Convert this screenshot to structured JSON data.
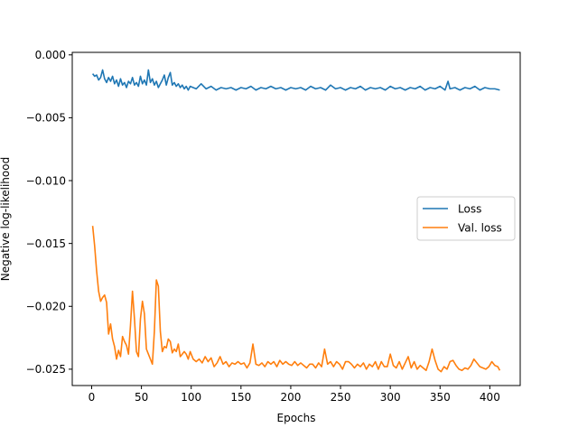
{
  "chart_data": {
    "type": "line",
    "title": "",
    "xlabel": "Epochs",
    "ylabel": "Negative log-likelihood",
    "xlim": [
      -19.5,
      430.5
    ],
    "ylim": [
      -0.0263,
      0.0002
    ],
    "xticks": [
      0,
      50,
      100,
      150,
      200,
      250,
      300,
      350,
      400
    ],
    "xtick_labels": [
      "0",
      "50",
      "100",
      "150",
      "200",
      "250",
      "300",
      "350",
      "400"
    ],
    "yticks": [
      0.0,
      -0.005,
      -0.01,
      -0.015,
      -0.02,
      -0.025
    ],
    "ytick_labels": [
      "0.000",
      "−0.005",
      "−0.010",
      "−0.015",
      "−0.020",
      "−0.025"
    ],
    "grid": false,
    "legend_position": "center-right",
    "series": [
      {
        "name": "Loss",
        "color": "#1f77b4",
        "x": [
          1,
          3,
          5,
          7,
          9,
          11,
          13,
          15,
          17,
          19,
          21,
          23,
          25,
          27,
          29,
          31,
          33,
          35,
          37,
          39,
          41,
          43,
          45,
          47,
          49,
          51,
          53,
          55,
          57,
          59,
          61,
          63,
          65,
          67,
          69,
          71,
          73,
          75,
          77,
          79,
          81,
          83,
          85,
          87,
          89,
          91,
          93,
          95,
          97,
          99,
          105,
          110,
          115,
          120,
          125,
          130,
          135,
          140,
          145,
          150,
          155,
          160,
          165,
          170,
          175,
          180,
          185,
          190,
          195,
          200,
          205,
          210,
          215,
          220,
          225,
          230,
          235,
          240,
          245,
          250,
          255,
          260,
          265,
          270,
          275,
          280,
          285,
          290,
          295,
          300,
          305,
          310,
          315,
          320,
          325,
          330,
          335,
          340,
          345,
          350,
          355,
          358,
          360,
          365,
          370,
          375,
          380,
          385,
          390,
          395,
          400,
          405,
          410
        ],
        "values": [
          -0.0015,
          -0.0017,
          -0.0016,
          -0.002,
          -0.0018,
          -0.0012,
          -0.0019,
          -0.0022,
          -0.0018,
          -0.0021,
          -0.0017,
          -0.0023,
          -0.002,
          -0.0025,
          -0.0019,
          -0.0024,
          -0.0022,
          -0.0026,
          -0.0021,
          -0.0023,
          -0.0018,
          -0.0024,
          -0.0022,
          -0.0025,
          -0.0017,
          -0.0023,
          -0.002,
          -0.0024,
          -0.0012,
          -0.0022,
          -0.0019,
          -0.0024,
          -0.0021,
          -0.0026,
          -0.0023,
          -0.002,
          -0.0016,
          -0.0024,
          -0.0018,
          -0.0014,
          -0.0024,
          -0.0022,
          -0.0025,
          -0.0023,
          -0.0026,
          -0.0024,
          -0.0027,
          -0.0025,
          -0.0028,
          -0.0025,
          -0.0027,
          -0.0023,
          -0.0027,
          -0.0025,
          -0.0028,
          -0.0026,
          -0.0027,
          -0.0026,
          -0.0028,
          -0.0026,
          -0.0027,
          -0.0025,
          -0.0028,
          -0.0026,
          -0.0027,
          -0.0025,
          -0.0027,
          -0.0026,
          -0.0028,
          -0.0026,
          -0.0027,
          -0.0026,
          -0.0028,
          -0.0025,
          -0.0027,
          -0.0026,
          -0.0028,
          -0.0024,
          -0.0027,
          -0.0026,
          -0.0028,
          -0.0026,
          -0.0027,
          -0.0025,
          -0.0028,
          -0.0026,
          -0.0027,
          -0.0026,
          -0.0028,
          -0.0025,
          -0.0027,
          -0.0026,
          -0.0028,
          -0.0026,
          -0.0027,
          -0.0025,
          -0.0028,
          -0.0026,
          -0.0027,
          -0.0025,
          -0.0028,
          -0.0021,
          -0.0027,
          -0.0026,
          -0.0028,
          -0.0026,
          -0.0027,
          -0.0025,
          -0.0028,
          -0.0026,
          -0.0027,
          -0.0027,
          -0.0028
        ]
      },
      {
        "name": "Val. loss",
        "color": "#ff7f0e",
        "x": [
          1,
          3,
          5,
          7,
          9,
          11,
          13,
          15,
          17,
          19,
          21,
          23,
          25,
          27,
          29,
          31,
          33,
          35,
          37,
          39,
          41,
          43,
          45,
          47,
          49,
          51,
          53,
          55,
          57,
          59,
          61,
          63,
          65,
          67,
          69,
          71,
          73,
          75,
          77,
          79,
          81,
          83,
          85,
          87,
          89,
          91,
          93,
          95,
          97,
          99,
          102,
          105,
          108,
          111,
          114,
          117,
          120,
          123,
          126,
          129,
          132,
          135,
          138,
          141,
          144,
          147,
          150,
          153,
          156,
          159,
          162,
          165,
          168,
          171,
          174,
          177,
          180,
          183,
          186,
          189,
          192,
          195,
          198,
          201,
          204,
          207,
          210,
          213,
          216,
          219,
          222,
          225,
          228,
          231,
          234,
          237,
          240,
          243,
          246,
          249,
          252,
          255,
          258,
          261,
          264,
          267,
          270,
          273,
          276,
          279,
          282,
          285,
          288,
          291,
          294,
          297,
          300,
          303,
          306,
          309,
          312,
          315,
          318,
          321,
          324,
          327,
          330,
          333,
          336,
          339,
          342,
          345,
          348,
          351,
          354,
          357,
          360,
          363,
          366,
          369,
          372,
          375,
          378,
          381,
          384,
          387,
          390,
          393,
          396,
          399,
          402,
          405,
          408,
          410
        ],
        "values": [
          -0.0136,
          -0.0152,
          -0.0172,
          -0.0188,
          -0.0196,
          -0.0193,
          -0.0191,
          -0.0197,
          -0.0222,
          -0.0214,
          -0.0226,
          -0.0232,
          -0.0242,
          -0.0235,
          -0.024,
          -0.0224,
          -0.0228,
          -0.0231,
          -0.0238,
          -0.0215,
          -0.0188,
          -0.021,
          -0.0236,
          -0.024,
          -0.021,
          -0.0196,
          -0.0206,
          -0.0234,
          -0.0238,
          -0.0242,
          -0.0246,
          -0.022,
          -0.0179,
          -0.0184,
          -0.022,
          -0.0236,
          -0.0232,
          -0.0233,
          -0.0226,
          -0.0228,
          -0.0237,
          -0.0234,
          -0.0236,
          -0.023,
          -0.024,
          -0.0238,
          -0.0236,
          -0.0238,
          -0.0242,
          -0.0236,
          -0.0242,
          -0.0244,
          -0.0242,
          -0.0245,
          -0.024,
          -0.0244,
          -0.0241,
          -0.0248,
          -0.0245,
          -0.024,
          -0.0246,
          -0.0244,
          -0.0248,
          -0.0245,
          -0.0246,
          -0.0244,
          -0.0246,
          -0.0245,
          -0.0249,
          -0.0245,
          -0.023,
          -0.0246,
          -0.0247,
          -0.0245,
          -0.0248,
          -0.0244,
          -0.0246,
          -0.0244,
          -0.0248,
          -0.0243,
          -0.0246,
          -0.0244,
          -0.0246,
          -0.0247,
          -0.0244,
          -0.0247,
          -0.0245,
          -0.0247,
          -0.0249,
          -0.0246,
          -0.0246,
          -0.0249,
          -0.0245,
          -0.0248,
          -0.0234,
          -0.0246,
          -0.0244,
          -0.0248,
          -0.0244,
          -0.0246,
          -0.025,
          -0.0244,
          -0.0244,
          -0.0246,
          -0.0249,
          -0.0246,
          -0.0248,
          -0.0245,
          -0.025,
          -0.0246,
          -0.0248,
          -0.0244,
          -0.025,
          -0.0244,
          -0.0248,
          -0.0248,
          -0.0238,
          -0.0247,
          -0.0249,
          -0.0244,
          -0.025,
          -0.0245,
          -0.024,
          -0.0249,
          -0.0244,
          -0.025,
          -0.0247,
          -0.0249,
          -0.0251,
          -0.0244,
          -0.0234,
          -0.0243,
          -0.025,
          -0.0252,
          -0.0248,
          -0.025,
          -0.0244,
          -0.0243,
          -0.0247,
          -0.025,
          -0.0251,
          -0.0249,
          -0.025,
          -0.0247,
          -0.0242,
          -0.0245,
          -0.0248,
          -0.0249,
          -0.025,
          -0.0248,
          -0.0244,
          -0.0247,
          -0.0248,
          -0.0251
        ]
      }
    ]
  }
}
